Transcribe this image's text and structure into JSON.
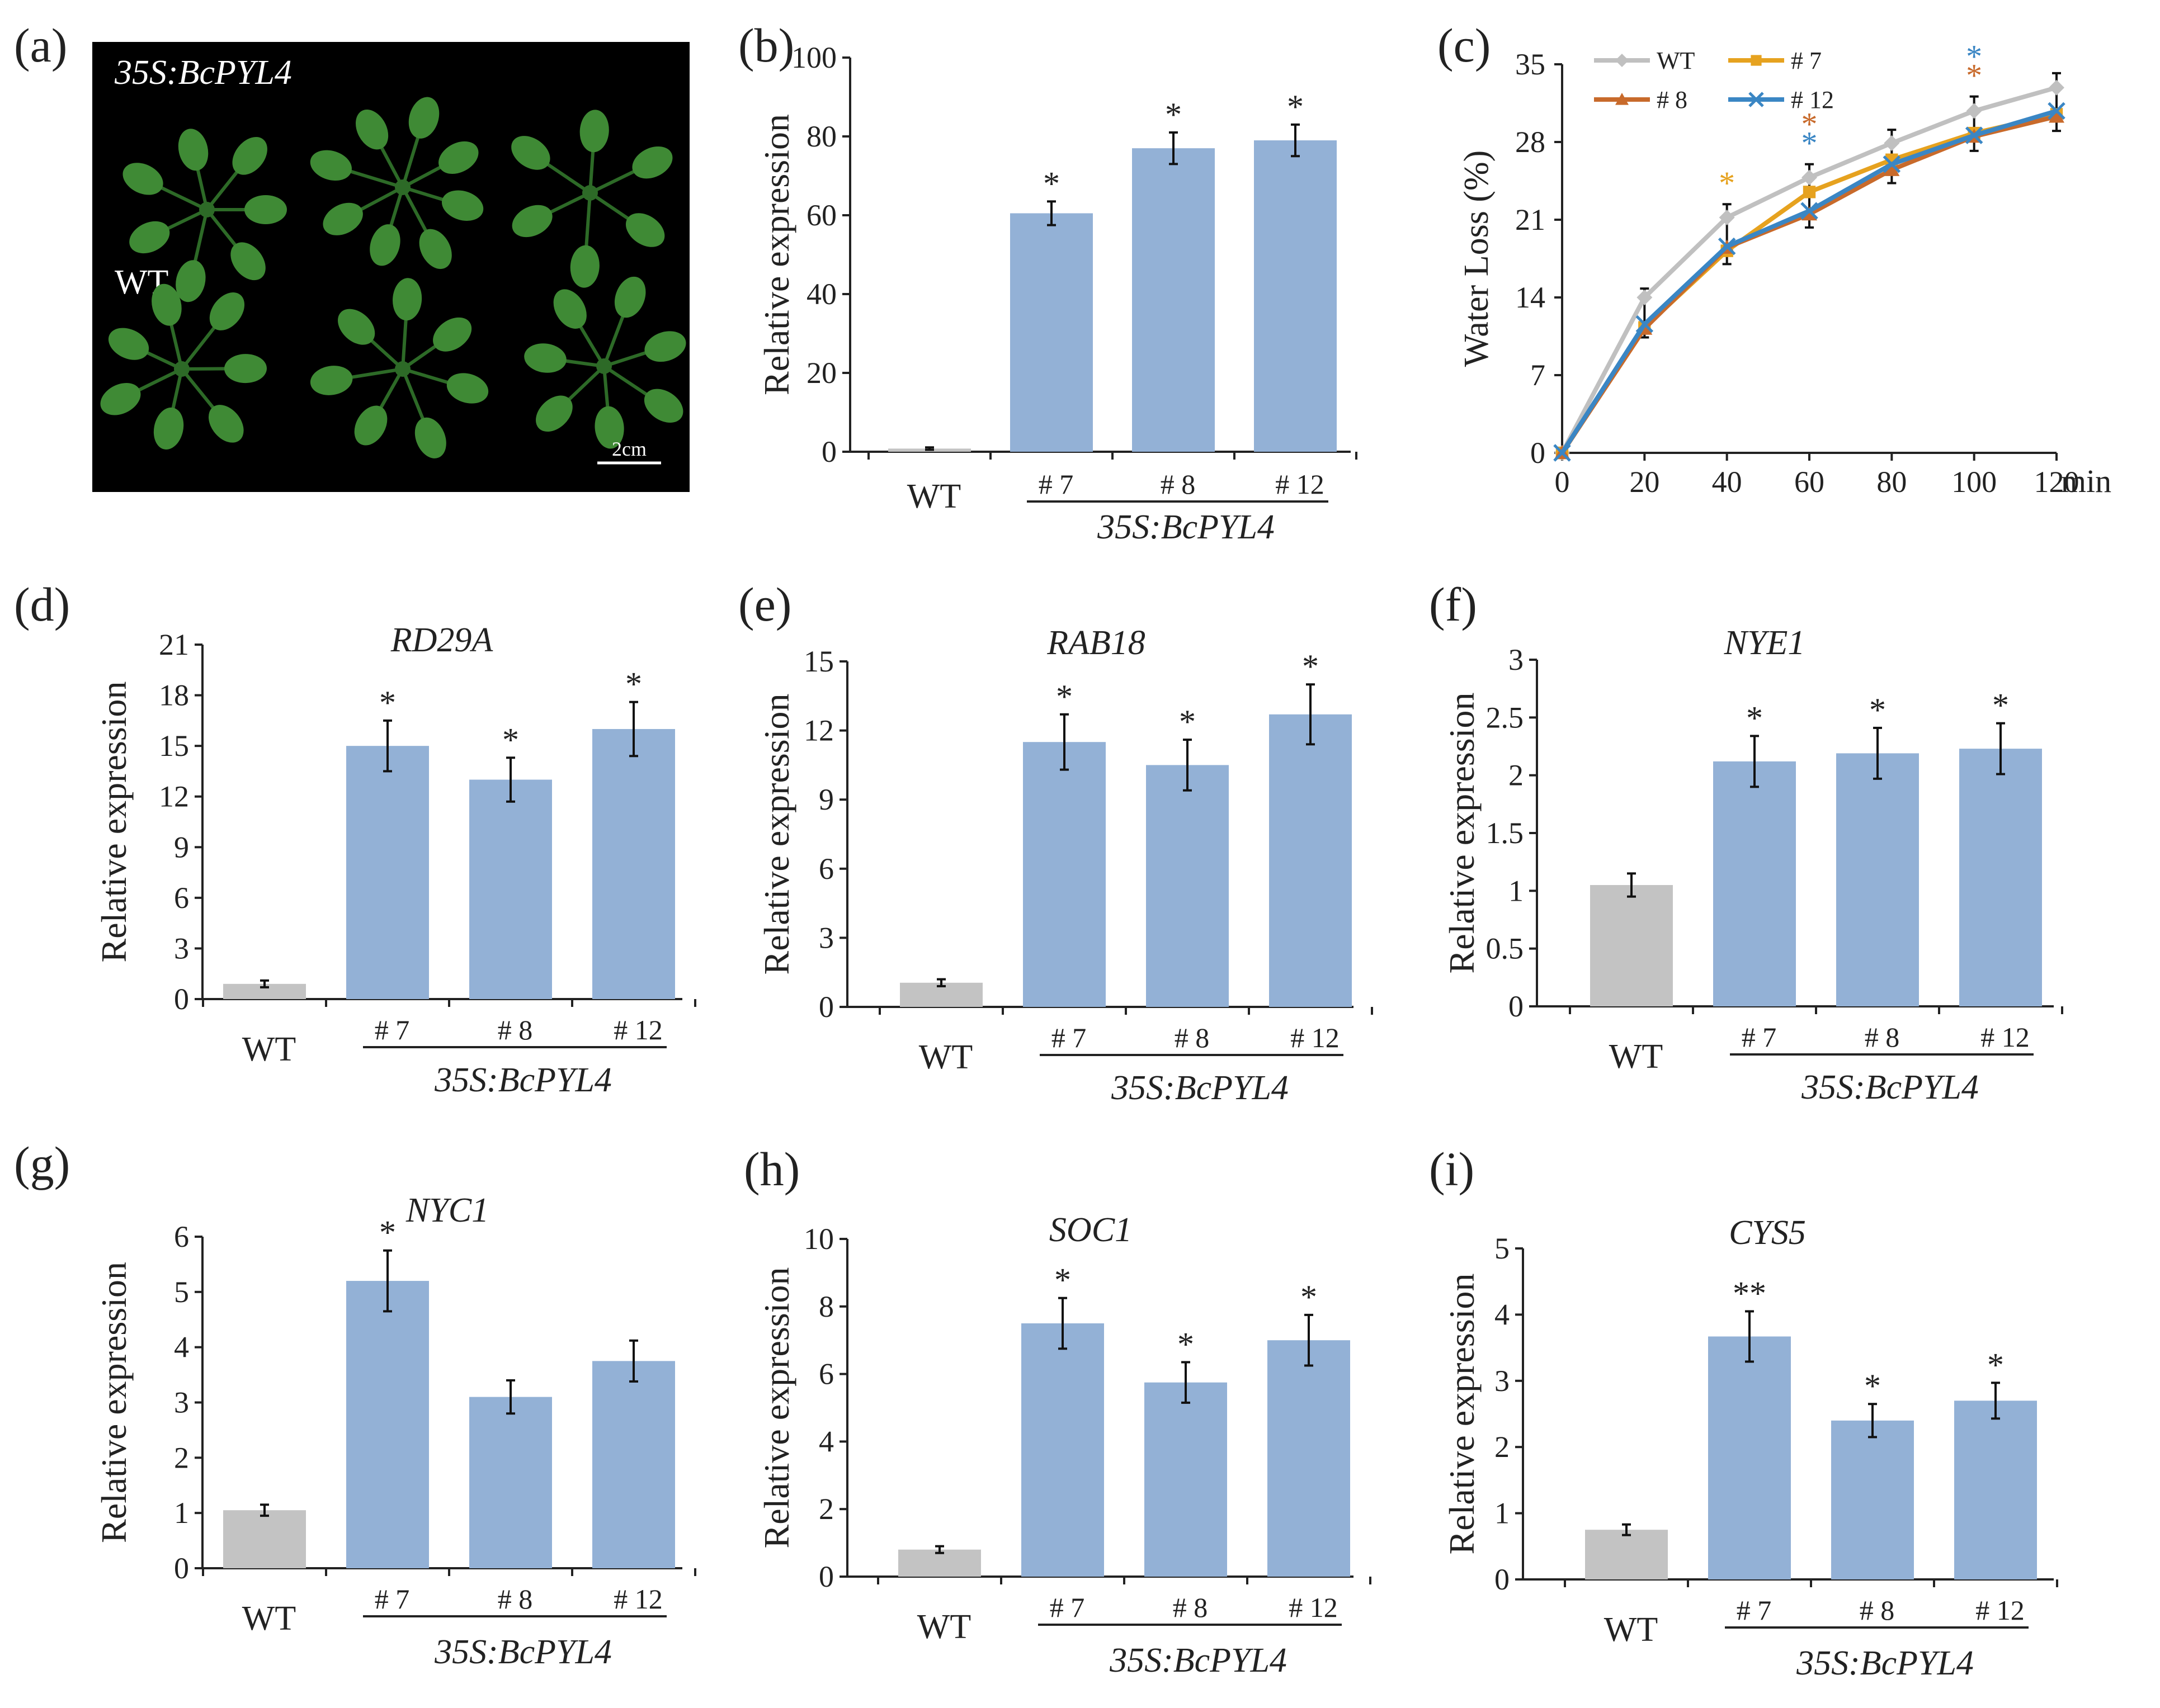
{
  "colors": {
    "wt_bar": "#c3c3c3",
    "tg_bar": "#93b1d6",
    "axis": "#222222",
    "photo_bg": "#000000",
    "leaf": "#3f8a35",
    "leaf_dark": "#2d6a27",
    "wt_line": "#c0c0c0",
    "l7_line": "#e6a21f",
    "l8_line": "#c86a2b",
    "l12_line": "#3a86c4"
  },
  "panel_a": {
    "letter": "(a)",
    "label_top": "35S:BcPYL4",
    "label_wt": "WT",
    "scale_bar": "2cm"
  },
  "chart_data": [
    {
      "panel": "(b)",
      "type": "bar",
      "title": "",
      "ylabel": "Relative   expression",
      "xlabel": "35S:BcPYL4",
      "categories": [
        "WT",
        "# 7",
        "# 8",
        "# 12"
      ],
      "values": [
        0.8,
        60.5,
        77,
        79
      ],
      "errors": [
        0.3,
        3,
        4,
        4
      ],
      "significance": [
        "",
        "*",
        "*",
        "*"
      ],
      "ylim": [
        0,
        100
      ],
      "yticks": [
        "0",
        "20",
        "40",
        "60",
        "80",
        "100"
      ]
    },
    {
      "panel": "(c)",
      "type": "line",
      "title": "",
      "ylabel": "Water  Loss (%)",
      "xunit": "min",
      "x": [
        0,
        20,
        40,
        60,
        80,
        100,
        120
      ],
      "xticks": [
        "0",
        "20",
        "40",
        "60",
        "80",
        "100",
        "120"
      ],
      "ylim": [
        0,
        35
      ],
      "yticks": [
        "0",
        "7",
        "14",
        "21",
        "28",
        "35"
      ],
      "series": [
        {
          "name": "WT",
          "marker": "diamond",
          "values": [
            0,
            14,
            21.2,
            24.8,
            27.9,
            30.8,
            32.9
          ]
        },
        {
          "name": "# 7",
          "marker": "square",
          "values": [
            0,
            11.3,
            18.2,
            23.5,
            26.4,
            28.8,
            30.5
          ]
        },
        {
          "name": "# 8",
          "marker": "triangle",
          "values": [
            0,
            11.2,
            18.5,
            21.5,
            25.5,
            28.5,
            30.3
          ]
        },
        {
          "name": "# 12",
          "marker": "x",
          "values": [
            0,
            11.6,
            18.6,
            21.8,
            26.0,
            28.6,
            30.8
          ]
        }
      ],
      "errors": [
        0,
        0.8,
        1.2,
        1.2,
        1.2,
        1.3,
        1.3
      ],
      "significance": [
        {
          "x": 40,
          "series": "# 7",
          "text": "*"
        },
        {
          "x": 60,
          "series": "# 12",
          "text": "*"
        },
        {
          "x": 60,
          "series": "# 8",
          "text": "*"
        },
        {
          "x": 100,
          "series": "# 8",
          "text": "*"
        },
        {
          "x": 100,
          "series": "# 12",
          "text": "*"
        }
      ]
    },
    {
      "panel": "(d)",
      "type": "bar",
      "title": "RD29A",
      "ylabel": "Relative   expression",
      "xlabel": "35S:BcPYL4",
      "categories": [
        "WT",
        "# 7",
        "# 8",
        "# 12"
      ],
      "values": [
        0.9,
        15,
        13,
        16
      ],
      "errors": [
        0.2,
        1.5,
        1.3,
        1.6
      ],
      "significance": [
        "",
        "*",
        "*",
        "*"
      ],
      "ylim": [
        0,
        21
      ],
      "yticks": [
        "0",
        "3",
        "6",
        "9",
        "12",
        "15",
        "18",
        "21"
      ]
    },
    {
      "panel": "(e)",
      "type": "bar",
      "title": "RAB18",
      "ylabel": "Relative   expression",
      "xlabel": "35S:BcPYL4",
      "categories": [
        "WT",
        "# 7",
        "# 8",
        "# 12"
      ],
      "values": [
        1.05,
        11.5,
        10.5,
        12.7
      ],
      "errors": [
        0.15,
        1.2,
        1.1,
        1.3
      ],
      "significance": [
        "",
        "*",
        "*",
        "*"
      ],
      "ylim": [
        0,
        15
      ],
      "yticks": [
        "0",
        "3",
        "6",
        "9",
        "12",
        "15"
      ]
    },
    {
      "panel": "(f)",
      "type": "bar",
      "title": "NYE1",
      "ylabel": "Relative   expression",
      "xlabel": "35S:BcPYL4",
      "categories": [
        "WT",
        "# 7",
        "# 8",
        "# 12"
      ],
      "values": [
        1.05,
        2.12,
        2.19,
        2.23
      ],
      "errors": [
        0.1,
        0.22,
        0.22,
        0.22
      ],
      "significance": [
        "",
        "*",
        "*",
        "*"
      ],
      "ylim": [
        0,
        3
      ],
      "yticks": [
        "0",
        "0.5",
        "1",
        "1.5",
        "2",
        "2.5",
        "3"
      ]
    },
    {
      "panel": "(g)",
      "type": "bar",
      "title": "NYC1",
      "ylabel": "Relative   expression",
      "xlabel": "35S:BcPYL4",
      "categories": [
        "WT",
        "# 7",
        "# 8",
        "# 12"
      ],
      "values": [
        1.05,
        5.2,
        3.1,
        3.75
      ],
      "errors": [
        0.1,
        0.55,
        0.3,
        0.37
      ],
      "significance": [
        "",
        "*",
        "",
        ""
      ],
      "ylim": [
        0,
        6
      ],
      "yticks": [
        "0",
        "1",
        "2",
        "3",
        "4",
        "5",
        "6"
      ]
    },
    {
      "panel": "(h)",
      "type": "bar",
      "title": "SOC1",
      "ylabel": "Relative   expression",
      "xlabel": "35S:BcPYL4",
      "categories": [
        "WT",
        "# 7",
        "# 8",
        "# 12"
      ],
      "values": [
        0.8,
        7.5,
        5.75,
        7.0
      ],
      "errors": [
        0.1,
        0.75,
        0.6,
        0.75
      ],
      "significance": [
        "",
        "*",
        "*",
        "*"
      ],
      "ylim": [
        0,
        10
      ],
      "yticks": [
        "0",
        "2",
        "4",
        "6",
        "8",
        "10"
      ]
    },
    {
      "panel": "(i)",
      "type": "bar",
      "title": "CYS5",
      "ylabel": "Relative   expression",
      "xlabel": "35S:BcPYL4",
      "categories": [
        "WT",
        "# 7",
        "# 8",
        "# 12"
      ],
      "values": [
        0.75,
        3.67,
        2.4,
        2.7
      ],
      "errors": [
        0.08,
        0.38,
        0.25,
        0.27
      ],
      "significance": [
        "",
        "**",
        "*",
        "*"
      ],
      "ylim": [
        0,
        5
      ],
      "yticks": [
        "0",
        "1",
        "2",
        "3",
        "4",
        "5"
      ]
    }
  ]
}
